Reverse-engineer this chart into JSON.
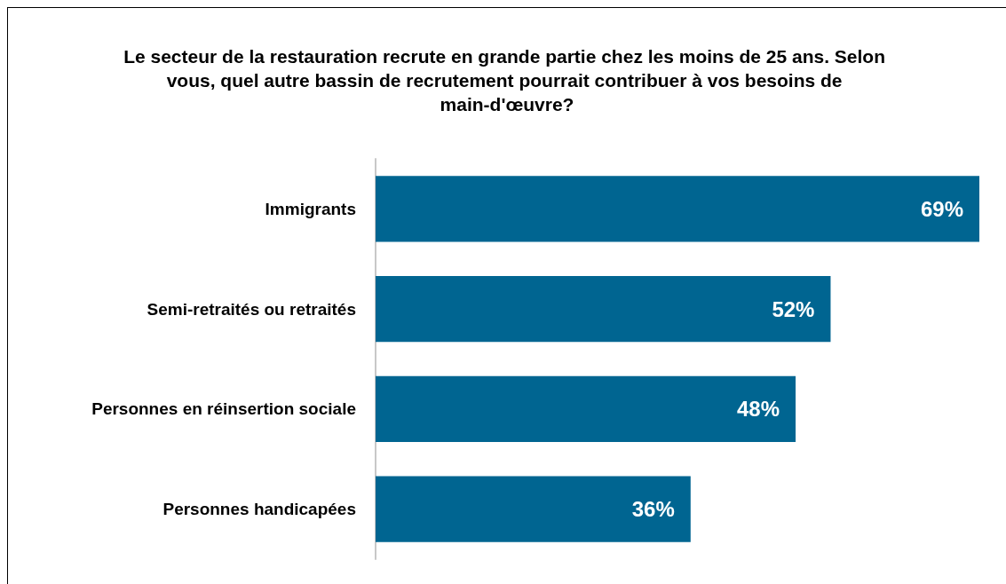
{
  "chart_data": {
    "type": "bar",
    "orientation": "horizontal",
    "title": "Le secteur de la restauration recrute en grande partie chez les moins de 25 ans. Selon vous, quel autre bassin de recrutement pourrait contribuer à vos besoins de main-d'œuvre?",
    "categories": [
      "Immigrants",
      "Semi-retraités ou retraités",
      "Personnes en réinsertion sociale",
      "Personnes handicapées"
    ],
    "values": [
      69,
      52,
      48,
      36
    ],
    "value_labels": [
      "69%",
      "52%",
      "48%",
      "36%"
    ],
    "color": "#006591"
  }
}
